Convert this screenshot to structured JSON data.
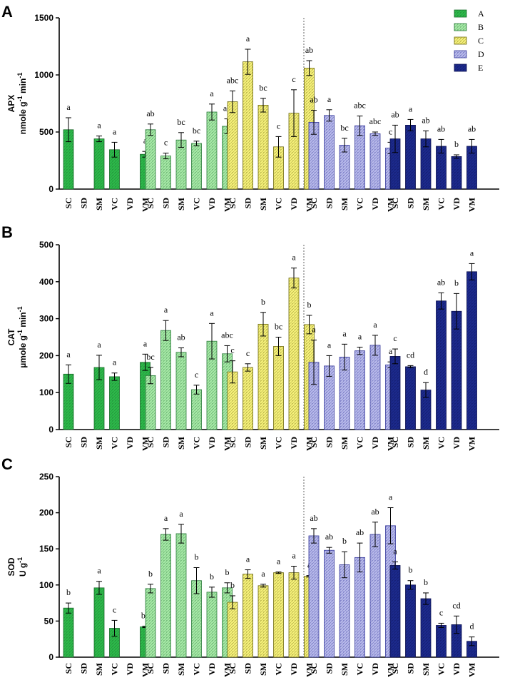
{
  "legend": [
    {
      "name": "A",
      "color": "#2db84a",
      "stroke": "#1a6b2a"
    },
    {
      "name": "B",
      "color": "#a6e8a6",
      "stroke": "#2a7a3a"
    },
    {
      "name": "C",
      "color": "#f5f07a",
      "stroke": "#6e6a10"
    },
    {
      "name": "D",
      "color": "#b7b9ea",
      "stroke": "#34379a"
    },
    {
      "name": "E",
      "color": "#1c2a8c",
      "stroke": "#0b1050"
    }
  ],
  "x_labels": [
    "SC",
    "SD",
    "SM",
    "VC",
    "VD",
    "VM"
  ],
  "chart_data": [
    {
      "panel": "A",
      "type": "bar",
      "ylabel_line1": "APX",
      "ylabel_line2": "nmole g",
      "ylabel_sup1": "-1",
      "ylabel_mid": " min",
      "ylabel_sup2": "-1",
      "ylim": [
        0,
        1500
      ],
      "yticks": [
        "0",
        "500",
        "1000",
        "1500"
      ],
      "ytick_values": [
        0,
        500,
        1000,
        1500
      ],
      "categories": [
        "SC",
        "SD",
        "SM",
        "VC",
        "VD",
        "VM"
      ],
      "series": [
        {
          "name": "A",
          "values": [
            520,
            null,
            440,
            345,
            null,
            305
          ],
          "errors": [
            105,
            null,
            25,
            65,
            null,
            25
          ],
          "letters": [
            "a",
            "",
            "a",
            "a",
            "",
            "a"
          ]
        },
        {
          "name": "B",
          "values": [
            520,
            290,
            430,
            400,
            675,
            550
          ],
          "errors": [
            50,
            25,
            65,
            20,
            70,
            65
          ],
          "letters": [
            "ab",
            "c",
            "bc",
            "bc",
            "a",
            "ab"
          ]
        },
        {
          "name": "C",
          "values": [
            765,
            1115,
            735,
            370,
            665,
            1060
          ],
          "errors": [
            95,
            110,
            60,
            90,
            205,
            65
          ],
          "letters": [
            "abc",
            "a",
            "bc",
            "c",
            "c",
            "ab"
          ]
        },
        {
          "name": "D",
          "values": [
            585,
            645,
            385,
            555,
            485,
            360
          ],
          "errors": [
            105,
            50,
            60,
            85,
            15,
            50
          ],
          "letters": [
            "ab",
            "a",
            "bc",
            "abc",
            "abc",
            "c"
          ]
        },
        {
          "name": "E",
          "values": [
            440,
            560,
            440,
            375,
            285,
            375
          ],
          "errors": [
            120,
            50,
            70,
            60,
            15,
            60
          ],
          "letters": [
            "ab",
            "a",
            "ab",
            "ab",
            "b",
            "ab"
          ]
        }
      ]
    },
    {
      "panel": "B",
      "type": "bar",
      "ylabel_line1": "CAT",
      "ylabel_line2": "µmole g",
      "ylabel_sup1": "-1",
      "ylabel_mid": " min",
      "ylabel_sup2": "-1",
      "ylim": [
        0,
        500
      ],
      "yticks": [
        "0",
        "100",
        "200",
        "300",
        "400",
        "500"
      ],
      "ytick_values": [
        0,
        100,
        200,
        300,
        400,
        500
      ],
      "categories": [
        "SC",
        "SD",
        "SM",
        "VC",
        "VD",
        "VM"
      ],
      "series": [
        {
          "name": "A",
          "values": [
            150,
            null,
            168,
            143,
            null,
            182
          ],
          "errors": [
            25,
            null,
            33,
            10,
            null,
            22
          ],
          "letters": [
            "a",
            "",
            "a",
            "a",
            "",
            "a"
          ]
        },
        {
          "name": "B",
          "values": [
            146,
            268,
            209,
            108,
            239,
            205
          ],
          "errors": [
            22,
            27,
            12,
            12,
            48,
            22
          ],
          "letters": [
            "bc",
            "a",
            "ab",
            "c",
            "a",
            "abc"
          ]
        },
        {
          "name": "C",
          "values": [
            156,
            168,
            285,
            225,
            410,
            284
          ],
          "errors": [
            30,
            10,
            32,
            25,
            27,
            25
          ],
          "letters": [
            "c",
            "c",
            "b",
            "bc",
            "a",
            "b"
          ]
        },
        {
          "name": "D",
          "values": [
            182,
            172,
            196,
            213,
            228,
            175
          ],
          "errors": [
            60,
            28,
            35,
            10,
            27,
            8
          ],
          "letters": [
            "a",
            "a",
            "a",
            "a",
            "a",
            "a"
          ]
        },
        {
          "name": "E",
          "values": [
            198,
            170,
            107,
            348,
            320,
            427
          ],
          "errors": [
            20,
            3,
            20,
            22,
            48,
            22
          ],
          "letters": [
            "c",
            "cd",
            "d",
            "ab",
            "b",
            "a"
          ]
        }
      ]
    },
    {
      "panel": "C",
      "type": "bar",
      "ylabel_line1": "SOD",
      "ylabel_line2": "U g",
      "ylabel_sup1": "-1",
      "ylabel_mid": "",
      "ylabel_sup2": "",
      "ylim": [
        0,
        250
      ],
      "yticks": [
        "0",
        "50",
        "100",
        "150",
        "200",
        "250"
      ],
      "ytick_values": [
        0,
        50,
        100,
        150,
        200,
        250
      ],
      "categories": [
        "SC",
        "SD",
        "SM",
        "VC",
        "VD",
        "VM"
      ],
      "series": [
        {
          "name": "A",
          "values": [
            68,
            null,
            96,
            40,
            null,
            42
          ],
          "errors": [
            7,
            null,
            9,
            11,
            null,
            1
          ],
          "letters": [
            "b",
            "",
            "a",
            "c",
            "",
            "bc"
          ]
        },
        {
          "name": "B",
          "values": [
            95,
            170,
            171,
            106,
            90,
            96
          ],
          "errors": [
            6,
            8,
            13,
            18,
            7,
            7
          ],
          "letters": [
            "b",
            "a",
            "a",
            "b",
            "b",
            "b"
          ]
        },
        {
          "name": "C",
          "values": [
            76,
            115,
            99,
            117,
            117,
            112
          ],
          "errors": [
            9,
            6,
            2,
            1,
            9,
            1
          ],
          "letters": [
            "b",
            "a",
            "a",
            "a",
            "a",
            "a"
          ]
        },
        {
          "name": "D",
          "values": [
            168,
            148,
            128,
            138,
            170,
            182
          ],
          "errors": [
            10,
            4,
            18,
            20,
            17,
            25
          ],
          "letters": [
            "ab",
            "ab",
            "b",
            "ab",
            "ab",
            "a"
          ]
        },
        {
          "name": "E",
          "values": [
            127,
            100,
            81,
            44,
            45,
            22
          ],
          "errors": [
            5,
            6,
            8,
            3,
            12,
            6
          ],
          "letters": [
            "a",
            "b",
            "b",
            "c",
            "cd",
            "d"
          ]
        }
      ]
    }
  ]
}
